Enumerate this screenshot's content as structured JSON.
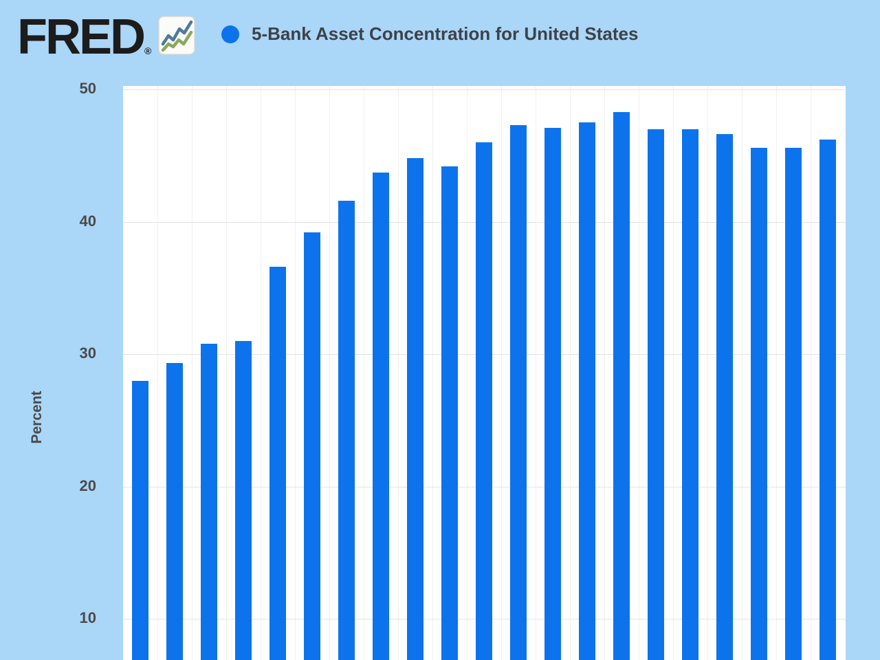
{
  "header": {
    "logo_text": "FRED",
    "registered_mark": "®",
    "icon": "line-chart-icon",
    "title": "5-Bank Asset Concentration for United States"
  },
  "colors": {
    "page_background": "#aad6f8",
    "series_color": "#0d73ec",
    "plot_background": "#ffffff",
    "gridline_horizontal": "#e3e3e3",
    "gridline_vertical": "#f0f0f0",
    "tick_text": "#4b4b4b",
    "title_text": "#3d4248",
    "logo_text": "#1c1c1c",
    "icon_line_blue": "#4e7a9c",
    "icon_line_green": "#8aa85e"
  },
  "chart_data": {
    "type": "bar",
    "title": "5-Bank Asset Concentration for United States",
    "ylabel": "Percent",
    "xlabel": "",
    "y_ticks": [
      50,
      40,
      30,
      20,
      10
    ],
    "grid": "horizontal-major-with-faint-vertical",
    "legend": "single series shown as blue dot beside title",
    "x_tick_labels_visible": false,
    "note_visible_area": "chart bottom edge cropped by screenshot; bars run past bottom of image",
    "bar_count": 21,
    "series": [
      {
        "name": "5-Bank Asset Concentration for United States",
        "unit": "Percent",
        "values": [
          28.0,
          29.3,
          30.8,
          31.0,
          36.6,
          39.2,
          41.6,
          43.7,
          44.8,
          44.2,
          46.0,
          47.3,
          47.1,
          47.5,
          48.3,
          47.0,
          47.0,
          46.6,
          45.6,
          45.6,
          46.2
        ]
      }
    ]
  }
}
